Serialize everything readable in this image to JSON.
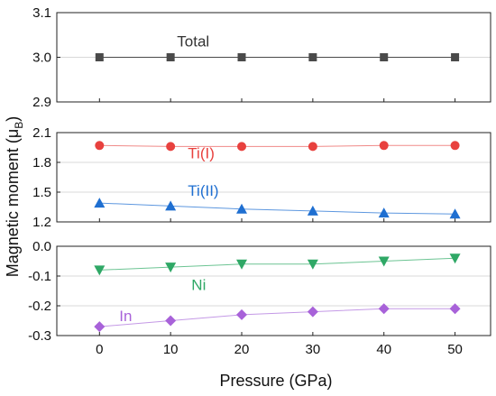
{
  "chart_data": {
    "type": "scatter",
    "xlabel": "Pressure (GPa)",
    "ylabel": "Magnetic moment (μ",
    "ylabel_sub": "B",
    "ylabel_close": ")",
    "x_ticks": [
      "0",
      "10",
      "20",
      "30",
      "40",
      "50"
    ],
    "xlim": [
      -6,
      55
    ],
    "grid": true,
    "panels": [
      {
        "ylim": [
          2.9,
          3.1
        ],
        "y_ticks": [
          "2.9",
          "3.0",
          "3.1"
        ],
        "y_tick_values": [
          2.9,
          3.0,
          3.1
        ],
        "series": [
          {
            "name": "Total",
            "marker": "square",
            "color": "#4a4a4a",
            "line_color": "#4a4a4a",
            "x": [
              0,
              10,
              20,
              30,
              40,
              50
            ],
            "y": [
              3.0,
              3.0,
              3.0,
              3.0,
              3.0,
              3.0
            ]
          }
        ]
      },
      {
        "ylim": [
          1.2,
          2.1
        ],
        "y_ticks": [
          "1.2",
          "1.5",
          "1.8",
          "2.1"
        ],
        "y_tick_values": [
          1.2,
          1.5,
          1.8,
          2.1
        ],
        "series": [
          {
            "name": "Ti(I)",
            "marker": "circle",
            "color": "#e8413e",
            "line_color": "#f08a88",
            "x": [
              0,
              10,
              20,
              30,
              40,
              50
            ],
            "y": [
              1.97,
              1.96,
              1.96,
              1.96,
              1.97,
              1.97
            ]
          },
          {
            "name": "Ti(II)",
            "marker": "triangle-up",
            "color": "#1f6fd1",
            "line_color": "#5d97df",
            "x": [
              0,
              10,
              20,
              30,
              40,
              50
            ],
            "y": [
              1.39,
              1.36,
              1.33,
              1.31,
              1.29,
              1.28
            ]
          }
        ]
      },
      {
        "ylim": [
          -0.3,
          0.0
        ],
        "y_ticks": [
          "-0.3",
          "-0.2",
          "-0.1",
          "0.0"
        ],
        "y_tick_values": [
          -0.3,
          -0.2,
          -0.1,
          0.0
        ],
        "series": [
          {
            "name": "Ni",
            "marker": "triangle-down",
            "color": "#2fa866",
            "line_color": "#6cc493",
            "x": [
              0,
              10,
              20,
              30,
              40,
              50
            ],
            "y": [
              -0.08,
              -0.07,
              -0.06,
              -0.06,
              -0.05,
              -0.04
            ]
          },
          {
            "name": "In",
            "marker": "diamond",
            "color": "#a862d9",
            "line_color": "#c499e6",
            "x": [
              0,
              10,
              20,
              30,
              40,
              50
            ],
            "y": [
              -0.27,
              -0.25,
              -0.23,
              -0.22,
              -0.21,
              -0.21
            ]
          }
        ]
      }
    ]
  }
}
